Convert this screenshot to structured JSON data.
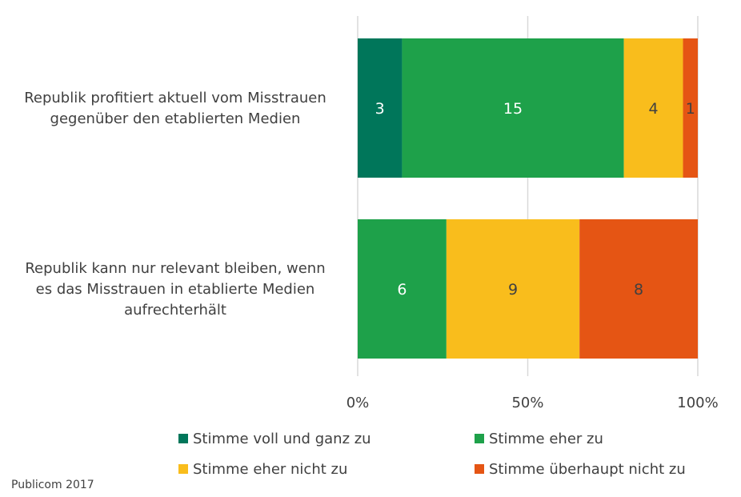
{
  "chart_data": {
    "type": "bar",
    "orientation": "horizontal",
    "stacked": "percent",
    "categories": [
      "Republik profitiert aktuell vom Misstrauen gegenüber den etablierten Medien",
      "Republik kann nur relevant bleiben, wenn es das Misstrauen in etablierte Medien aufrechterhält"
    ],
    "category_lines": [
      [
        "Republik profitiert aktuell vom Misstrauen",
        "gegenüber den etablierten Medien"
      ],
      [
        "Republik kann nur relevant bleiben, wenn",
        "es das Misstrauen in etablierte Medien",
        "aufrechterhält"
      ]
    ],
    "series": [
      {
        "name": "Stimme voll und ganz zu",
        "color": "#00765a",
        "label_color": "#ffffff",
        "values": [
          3,
          0
        ]
      },
      {
        "name": "Stimme eher zu",
        "color": "#1ea14a",
        "label_color": "#ffffff",
        "values": [
          15,
          6
        ]
      },
      {
        "name": "Stimme eher nicht zu",
        "color": "#f9bd1c",
        "label_color": "#404040",
        "values": [
          4,
          9
        ]
      },
      {
        "name": "Stimme überhaupt nicht zu",
        "color": "#e55514",
        "label_color": "#404040",
        "values": [
          1,
          8
        ]
      }
    ],
    "x_ticks": [
      "0%",
      "50%",
      "100%"
    ],
    "xlim": [
      0,
      100
    ],
    "grid": true,
    "legend_position": "bottom",
    "title": "",
    "xlabel": "",
    "ylabel": ""
  },
  "source": "Publicom 2017"
}
